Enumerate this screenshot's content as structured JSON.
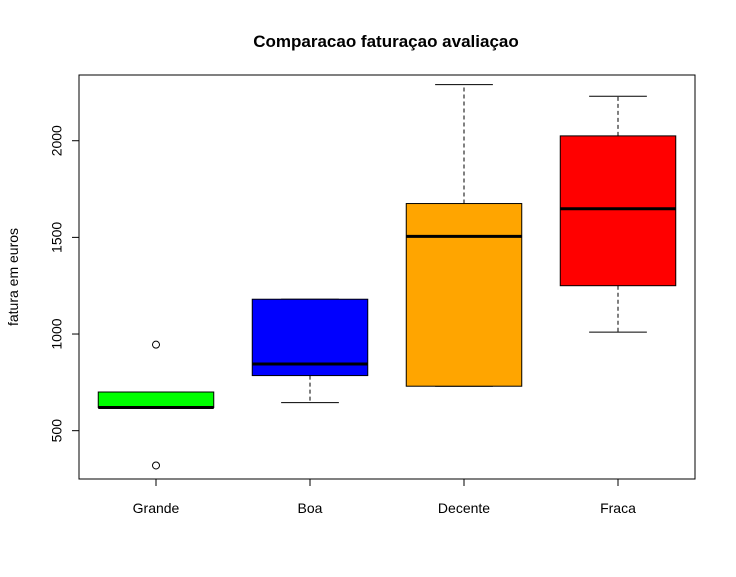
{
  "chart_data": {
    "type": "boxplot",
    "title": "Comparacao faturaçao avaliaçao",
    "xlabel": "",
    "ylabel": "fatura em euros",
    "ylim": [
      250,
      2340
    ],
    "yticks": [
      500,
      1000,
      1500,
      2000
    ],
    "grid": false,
    "legend": "none",
    "categories": [
      "Grande",
      "Boa",
      "Decente",
      "Fraca"
    ],
    "boxes": [
      {
        "label": "Grande",
        "color": "#00ff00",
        "whisker_low": 620,
        "q1": 620,
        "median": 620,
        "q3": 700,
        "whisker_high": 700,
        "outliers": [
          945,
          320
        ]
      },
      {
        "label": "Boa",
        "color": "#0000ff",
        "whisker_low": 645,
        "q1": 785,
        "median": 845,
        "q3": 1180,
        "whisker_high": 1180,
        "outliers": []
      },
      {
        "label": "Decente",
        "color": "#ffa500",
        "whisker_low": 730,
        "q1": 730,
        "median": 1505,
        "q3": 1675,
        "whisker_high": 2290,
        "outliers": []
      },
      {
        "label": "Fraca",
        "color": "#ff0000",
        "whisker_low": 1010,
        "q1": 1250,
        "median": 1648,
        "q3": 2025,
        "whisker_high": 2230,
        "outliers": []
      }
    ]
  }
}
